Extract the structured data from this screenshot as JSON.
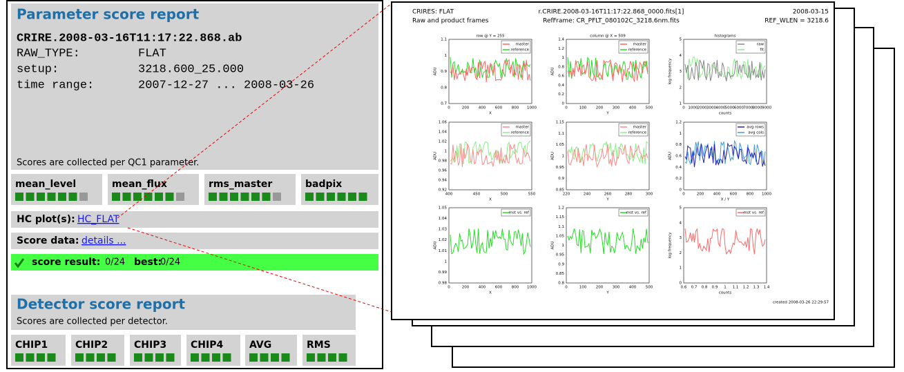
{
  "parameter_report": {
    "title": "Parameter score report",
    "file": "CRIRE.2008-03-16T11:17:22.868.ab",
    "fields": [
      {
        "label": "RAW_TYPE:",
        "value": "FLAT"
      },
      {
        "label": "setup:",
        "value": "3218.600_25.000"
      },
      {
        "label": "time range:",
        "value": "2007-12-27 ... 2008-03-26"
      }
    ],
    "note": "Scores are collected per QC1 parameter.",
    "scores": [
      {
        "name": "mean_level",
        "good": 6,
        "bad": 1
      },
      {
        "name": "mean_flux",
        "good": 6,
        "bad": 1
      },
      {
        "name": "rms_master",
        "good": 6,
        "bad": 1
      },
      {
        "name": "badpix",
        "good": 6,
        "bad": 0
      }
    ],
    "hc_plots": {
      "label": "HC plot(s):",
      "link": "HC_FLAT"
    },
    "score_data": {
      "label": "Score data:",
      "link": "details ..."
    },
    "result": {
      "label": "score result:",
      "value": "0/24",
      "best_label": "best:",
      "best": "0/24"
    }
  },
  "detector_report": {
    "title": "Detector score report",
    "note": "Scores are collected per detector.",
    "scores": [
      {
        "name": "CHIP1",
        "good": 4
      },
      {
        "name": "CHIP2",
        "good": 4
      },
      {
        "name": "CHIP3",
        "good": 4
      },
      {
        "name": "CHIP4",
        "good": 4
      },
      {
        "name": "AVG",
        "good": 4
      },
      {
        "name": "RMS",
        "good": 4
      }
    ]
  },
  "plot_page": {
    "header": {
      "left1": "CRIRES: FLAT",
      "left2": "Raw and product frames",
      "center1": "r.CRIRE.2008-03-16T11:17:22.868_0000.fits[1]",
      "center2": "RefFrame: CR_PFLT_080102C_3218.6nm.fits",
      "right1": "2008-03-15",
      "right2": "REF_WLEN = 3218.6"
    },
    "footer": "created 2008-03-26 22:29:57",
    "panels": [
      {
        "title": "row @ Y = 255",
        "xlabel": "X",
        "ylabel": "ADU",
        "xticks": [
          "0",
          "200",
          "400",
          "600",
          "800",
          "1000"
        ],
        "yticks": [
          "0.7",
          "0.8",
          "0.9",
          "1",
          "1.1"
        ],
        "legend": [
          {
            "name": "master",
            "color": "#ff6666"
          },
          {
            "name": "reference",
            "color": "#22dd22"
          }
        ]
      },
      {
        "title": "column @ X = 509",
        "xlabel": "Y",
        "ylabel": "ADU",
        "xticks": [
          "0",
          "100",
          "200",
          "300",
          "400",
          "500"
        ],
        "yticks": [
          "0",
          "0.2",
          "0.4",
          "0.6",
          "0.8",
          "1",
          "1.2",
          "1.4"
        ],
        "legend": [
          {
            "name": "master",
            "color": "#ff6666"
          },
          {
            "name": "reference",
            "color": "#22dd22"
          }
        ]
      },
      {
        "title": "histograms",
        "xlabel": "counts",
        "ylabel": "log frequency",
        "xticks": [
          "0",
          "1000",
          "2000",
          "3000",
          "4000",
          "5000",
          "6000",
          "7000",
          "8000",
          "9000"
        ],
        "yticks": [
          "1",
          "2",
          "3",
          "4",
          "5"
        ],
        "legend": [
          {
            "name": "raw",
            "color": "#888888"
          },
          {
            "name": "fit",
            "color": "#88ee88"
          }
        ]
      },
      {
        "title": "",
        "xlabel": "X",
        "ylabel": "ADU",
        "xticks": [
          "400",
          "450",
          "500",
          "550"
        ],
        "yticks": [
          "0.92",
          "0.94",
          "0.96",
          "0.98",
          "1",
          "1.02",
          "1.04",
          "1.06"
        ],
        "legend": [
          {
            "name": "master",
            "color": "#ff8888"
          },
          {
            "name": "reference",
            "color": "#88ee88"
          }
        ]
      },
      {
        "title": "",
        "xlabel": "Y",
        "ylabel": "ADU",
        "xticks": [
          "220",
          "240",
          "260",
          "280",
          "300"
        ],
        "yticks": [
          "0.85",
          "0.9",
          "0.95",
          "1",
          "1.05",
          "1.1",
          "1.15"
        ],
        "legend": [
          {
            "name": "master",
            "color": "#ff8888"
          },
          {
            "name": "reference",
            "color": "#88ee88"
          }
        ]
      },
      {
        "title": "",
        "xlabel": "X / Y",
        "ylabel": "ADU",
        "xticks": [
          "0",
          "200",
          "400",
          "600",
          "800",
          "1000"
        ],
        "yticks": [
          "0",
          "0.2",
          "0.4",
          "0.6",
          "0.8",
          "1",
          "1.2"
        ],
        "legend": [
          {
            "name": "avg rows",
            "color": "#2222bb"
          },
          {
            "name": "avg cols",
            "color": "#4499dd"
          }
        ]
      },
      {
        "title": "",
        "xlabel": "X",
        "ylabel": "ADU",
        "xticks": [
          "0",
          "200",
          "400",
          "600",
          "800",
          "1000"
        ],
        "yticks": [
          "0.98",
          "0.99",
          "1",
          "1.01",
          "1.02",
          "1.03",
          "1.04",
          "1.05"
        ],
        "legend": [
          {
            "name": "mst vs. ref",
            "color": "#22dd22"
          }
        ]
      },
      {
        "title": "",
        "xlabel": "Y",
        "ylabel": "ADU",
        "xticks": [
          "0",
          "100",
          "200",
          "300",
          "400",
          "500"
        ],
        "yticks": [
          "0.8",
          "0.85",
          "0.9",
          "0.95",
          "1",
          "1.05",
          "1.1",
          "1.15",
          "1.2"
        ],
        "legend": [
          {
            "name": "mst vs. ref",
            "color": "#22dd22"
          }
        ]
      },
      {
        "title": "",
        "xlabel": "counts",
        "ylabel": "log frequency",
        "xticks": [
          "0.6",
          "0.7",
          "0.8",
          "0.9",
          "1",
          "1.1",
          "1.2",
          "1.3",
          "1.4"
        ],
        "yticks": [
          "0",
          "1",
          "2",
          "3",
          "4",
          "5"
        ],
        "legend": [
          {
            "name": "mst vs. ref",
            "color": "#ff6666"
          }
        ]
      }
    ]
  }
}
